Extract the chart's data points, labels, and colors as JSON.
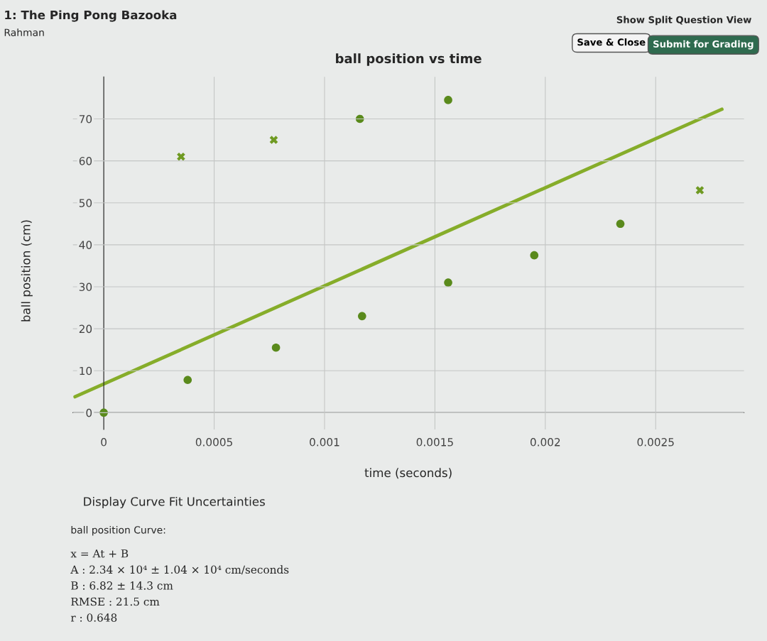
{
  "chart_data": {
    "type": "scatter",
    "title": "ball position vs time",
    "xlabel": "time (seconds)",
    "ylabel": "ball position (cm)",
    "xlim": [
      -0.00014,
      0.0029
    ],
    "ylim": [
      -4,
      80
    ],
    "xticks": [
      0,
      0.0005,
      0.001,
      0.0015,
      0.002,
      0.0025
    ],
    "yticks": [
      0,
      10,
      20,
      30,
      40,
      50,
      60,
      70
    ],
    "grid": true,
    "series": [
      {
        "marker": "circle",
        "color": "#5a8a1c",
        "x": [
          0,
          0.00038,
          0.00078,
          0.00117,
          0.00116,
          0.00156,
          0.00156,
          0.00195,
          0.00234
        ],
        "values": [
          0,
          7.8,
          15.5,
          23,
          70,
          31,
          74.5,
          37.5,
          45
        ]
      },
      {
        "marker": "cross",
        "color": "#6f9a22",
        "x": [
          0.00035,
          0.00077,
          0.0027
        ],
        "values": [
          61,
          65,
          53
        ]
      },
      {
        "type": "line",
        "marker": "none",
        "line_style": "solid",
        "color": "#86ad2a",
        "x": [
          -0.00013,
          0.0028
        ],
        "values": [
          3.8,
          72.3
        ]
      }
    ],
    "annotations": [
      "1: The Ping Pong Bazooka",
      "Rahman",
      "Show Split Question View",
      "Save & Close",
      "Submit for Grading",
      "Display Curve Fit Uncertainties",
      "ball position Curve:",
      "x = At + B",
      "A : 2.34 × 10⁴ ± 1.04 × 10⁴ cm/seconds",
      "B : 6.82 ± 14.3 cm",
      "RMSE : 21.5 cm",
      "r : 0.648"
    ]
  }
}
